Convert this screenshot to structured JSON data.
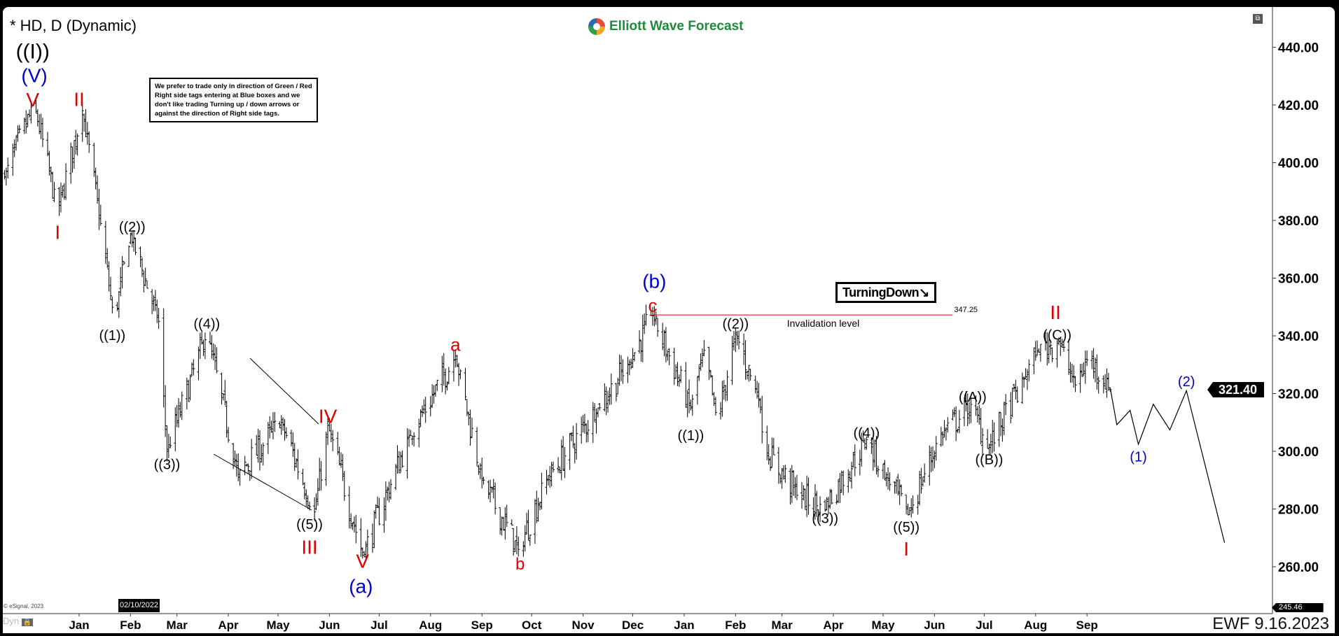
{
  "header": {
    "title": "* HD, D (Dynamic)",
    "logo_text": "Elliott Wave Forecast"
  },
  "info_box": "We prefer to trade only in direction of Green / Red Right side tags entering at Blue boxes and we don't like trading Turning up / down arrows or against the direction of Right side tags.",
  "turning_tag": {
    "label": "TurningDown",
    "arrow": "↘"
  },
  "invalidation": {
    "label": "Invalidation level",
    "value": "347.25",
    "price": 347.25,
    "start": "2022-12-13",
    "end": "2023-06-12",
    "color": "#e00000"
  },
  "last_price": "321.40",
  "low_tag": "245.46",
  "crosshair_date": "02/10/2022",
  "footer": {
    "dyn": "Dyn",
    "copyright": "© eSignal, 2023",
    "stamp": "EWF 9.16.2023"
  },
  "icons": {
    "restore": "window-restore-icon",
    "lock": "lock-icon"
  },
  "colors": {
    "red": "#e00000",
    "blue": "#0000cc",
    "black": "#000000",
    "logo": "#1f8a3c"
  },
  "chart_data": {
    "type": "ohlc-bar",
    "symbol": "HD",
    "interval": "D",
    "ylim": [
      245.46,
      448
    ],
    "y_ticks": [
      "440.00",
      "420.00",
      "400.00",
      "380.00",
      "360.00",
      "340.00",
      "320.00",
      "300.00",
      "280.00",
      "260.00"
    ],
    "x_ticks": [
      {
        "label": "Jan",
        "date": "2022-01-01"
      },
      {
        "label": "Feb",
        "date": "2022-02-01"
      },
      {
        "label": "Mar",
        "date": "2022-03-01"
      },
      {
        "label": "Apr",
        "date": "2022-04-01"
      },
      {
        "label": "May",
        "date": "2022-05-01"
      },
      {
        "label": "Jun",
        "date": "2022-06-01"
      },
      {
        "label": "Jul",
        "date": "2022-07-01"
      },
      {
        "label": "Aug",
        "date": "2022-08-01"
      },
      {
        "label": "Sep",
        "date": "2022-09-01"
      },
      {
        "label": "Oct",
        "date": "2022-10-01"
      },
      {
        "label": "Nov",
        "date": "2022-11-01"
      },
      {
        "label": "Dec",
        "date": "2022-12-01"
      },
      {
        "label": "Jan",
        "date": "2023-01-01"
      },
      {
        "label": "Feb",
        "date": "2023-02-01"
      },
      {
        "label": "Mar",
        "date": "2023-03-01"
      },
      {
        "label": "Apr",
        "date": "2023-04-01"
      },
      {
        "label": "May",
        "date": "2023-05-01"
      },
      {
        "label": "Jun",
        "date": "2023-06-01"
      },
      {
        "label": "Jul",
        "date": "2023-07-01"
      },
      {
        "label": "Aug",
        "date": "2023-08-01"
      },
      {
        "label": "Sep",
        "date": "2023-09-01"
      }
    ],
    "price_path": [
      [
        "2021-11-17",
        395
      ],
      [
        "2021-12-05",
        420
      ],
      [
        "2021-12-19",
        383
      ],
      [
        "2022-01-03",
        418
      ],
      [
        "2022-01-15",
        375
      ],
      [
        "2022-01-22",
        345
      ],
      [
        "2022-02-01",
        375
      ],
      [
        "2022-02-18",
        345
      ],
      [
        "2022-02-23",
        300
      ],
      [
        "2022-03-19",
        341
      ],
      [
        "2022-04-07",
        292
      ],
      [
        "2022-05-03",
        310
      ],
      [
        "2022-05-23",
        279
      ],
      [
        "2022-05-31",
        309
      ],
      [
        "2022-06-21",
        264
      ],
      [
        "2022-07-19",
        305
      ],
      [
        "2022-08-16",
        333
      ],
      [
        "2022-09-01",
        290
      ],
      [
        "2022-09-23",
        266
      ],
      [
        "2022-10-10",
        290
      ],
      [
        "2022-11-10",
        315
      ],
      [
        "2022-11-28",
        330
      ],
      [
        "2022-12-13",
        347
      ],
      [
        "2023-01-05",
        315
      ],
      [
        "2023-01-13",
        335
      ],
      [
        "2023-01-21",
        310
      ],
      [
        "2023-02-01",
        341
      ],
      [
        "2023-02-15",
        318
      ],
      [
        "2023-02-19",
        300
      ],
      [
        "2023-03-11",
        285
      ],
      [
        "2023-03-26",
        280
      ],
      [
        "2023-04-21",
        304
      ],
      [
        "2023-05-04",
        290
      ],
      [
        "2023-05-16",
        278
      ],
      [
        "2023-06-04",
        305
      ],
      [
        "2023-06-24",
        316
      ],
      [
        "2023-07-03",
        301
      ],
      [
        "2023-07-25",
        325
      ],
      [
        "2023-08-02",
        335
      ],
      [
        "2023-08-15",
        338
      ],
      [
        "2023-08-25",
        323
      ],
      [
        "2023-09-02",
        333
      ],
      [
        "2023-09-15",
        321.4
      ]
    ],
    "projection": [
      [
        "2023-09-15",
        322
      ],
      [
        "2023-09-19",
        309.2
      ],
      [
        "2023-09-27",
        314.2
      ],
      [
        "2023-10-02",
        302.4
      ],
      [
        "2023-10-11",
        316.3
      ],
      [
        "2023-10-21",
        307.4
      ],
      [
        "2023-10-31",
        321
      ],
      [
        "2023-11-23",
        268.3
      ]
    ],
    "wave_labels": [
      {
        "text": "((I))",
        "color": "#000000",
        "date": "2021-12-04",
        "price": 440.1,
        "size": 30
      },
      {
        "text": "(V)",
        "color": "#0000cc",
        "date": "2021-12-05",
        "price": 432.6,
        "size": 28
      },
      {
        "text": "V",
        "color": "#e00000",
        "date": "2021-12-04",
        "price": 425,
        "size": 28
      },
      {
        "text": "II",
        "color": "#e00000",
        "date": "2022-01-01",
        "price": 422,
        "size": 28
      },
      {
        "text": "I",
        "color": "#e00000",
        "date": "2021-12-19",
        "price": 375.9,
        "size": 28
      },
      {
        "text": "((2))",
        "color": "#000000",
        "date": "2022-02-02",
        "price": 377.6,
        "size": 20
      },
      {
        "text": "((1))",
        "color": "#000000",
        "date": "2022-01-21",
        "price": 340,
        "size": 20
      },
      {
        "text": "((4))",
        "color": "#000000",
        "date": "2022-03-19",
        "price": 344,
        "size": 20
      },
      {
        "text": "((3))",
        "color": "#000000",
        "date": "2022-02-23",
        "price": 295.3,
        "size": 20
      },
      {
        "text": "IV",
        "color": "#e00000",
        "date": "2022-05-31",
        "price": 312.1,
        "size": 28
      },
      {
        "text": "((5))",
        "color": "#000000",
        "date": "2022-05-20",
        "price": 274.5,
        "size": 20
      },
      {
        "text": "III",
        "color": "#e00000",
        "date": "2022-05-20",
        "price": 266.8,
        "size": 28
      },
      {
        "text": "V",
        "color": "#e00000",
        "date": "2022-06-21",
        "price": 261.2,
        "size": 28
      },
      {
        "text": "(a)",
        "color": "#0000cc",
        "date": "2022-06-20",
        "price": 254,
        "size": 28
      },
      {
        "text": "a",
        "color": "#e00000",
        "date": "2022-08-16",
        "price": 337,
        "size": 26
      },
      {
        "text": "b",
        "color": "#e00000",
        "date": "2022-09-24",
        "price": 260.9,
        "size": 24
      },
      {
        "text": "(b)",
        "color": "#0000cc",
        "date": "2022-12-14",
        "price": 357.2,
        "size": 28
      },
      {
        "text": "c",
        "color": "#e00000",
        "date": "2022-12-13",
        "price": 351,
        "size": 26
      },
      {
        "text": "((2))",
        "color": "#000000",
        "date": "2023-02-01",
        "price": 344,
        "size": 20
      },
      {
        "text": "((1))",
        "color": "#000000",
        "date": "2023-01-05",
        "price": 305.3,
        "size": 20
      },
      {
        "text": "((3))",
        "color": "#000000",
        "date": "2023-03-27",
        "price": 276.6,
        "size": 20
      },
      {
        "text": "((4))",
        "color": "#000000",
        "date": "2023-04-21",
        "price": 306.2,
        "size": 20
      },
      {
        "text": "((5))",
        "color": "#000000",
        "date": "2023-05-15",
        "price": 273.6,
        "size": 20
      },
      {
        "text": "I",
        "color": "#e00000",
        "date": "2023-05-15",
        "price": 266.2,
        "size": 28
      },
      {
        "text": "((A))",
        "color": "#000000",
        "date": "2023-06-24",
        "price": 318.7,
        "size": 20
      },
      {
        "text": "((B))",
        "color": "#000000",
        "date": "2023-07-04",
        "price": 297,
        "size": 20
      },
      {
        "text": "((C))",
        "color": "#000000",
        "date": "2023-08-14",
        "price": 340.9,
        "size": 20
      },
      {
        "text": "II",
        "color": "#e00000",
        "date": "2023-08-13",
        "price": 347.1,
        "size": 28
      },
      {
        "text": "(1)",
        "color": "#0000cc",
        "date": "2023-10-02",
        "price": 298,
        "size": 20
      },
      {
        "text": "(2)",
        "color": "#0000cc",
        "date": "2023-10-31",
        "price": 324,
        "size": 20
      }
    ]
  }
}
